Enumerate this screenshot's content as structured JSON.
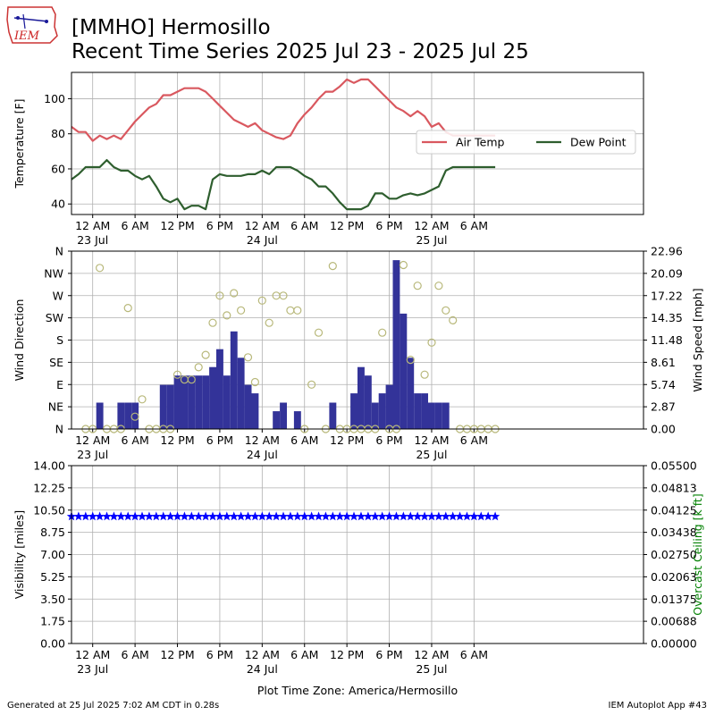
{
  "header": {
    "title_line1": "[MMHO] Hermosillo",
    "title_line2": "Recent Time Series 2025 Jul 23 - 2025 Jul 25",
    "logo_text": "IEM"
  },
  "footer": {
    "left": "Generated at 25 Jul 2025 7:02 AM CDT in 0.28s",
    "right": "IEM Autoplot App #43"
  },
  "colors": {
    "air_temp": "#d9585f",
    "dew_point": "#2e5e2e",
    "wind_bar": "#333399",
    "wind_dir": "#b8b87a",
    "visibility": "#0000ff",
    "ceiling_label": "#008000",
    "grid": "#b0b0b0"
  },
  "chart_data": [
    {
      "type": "line",
      "ylabel": "Temperature [F]",
      "ylim": [
        34,
        115
      ],
      "yticks": [
        40,
        60,
        80,
        100
      ],
      "xlim": [
        -3,
        78
      ],
      "grid": true,
      "legend_position": "right",
      "x_tick_hours": [
        0,
        6,
        12,
        18,
        24,
        30,
        36,
        42,
        48,
        54
      ],
      "x_tick_labels": [
        "12 AM",
        "6 AM",
        "12 PM",
        "6 PM",
        "12 AM",
        "6 AM",
        "12 PM",
        "6 PM",
        "12 AM",
        "6 AM"
      ],
      "x_date_labels": [
        {
          "hour": 0,
          "label": "23 Jul"
        },
        {
          "hour": 24,
          "label": "24 Jul"
        },
        {
          "hour": 48,
          "label": "25 Jul"
        }
      ],
      "series": [
        {
          "name": "Air Temp",
          "x": [
            -3,
            -2,
            -1,
            0,
            1,
            2,
            3,
            4,
            5,
            6,
            7,
            8,
            9,
            10,
            11,
            12,
            13,
            14,
            15,
            16,
            17,
            18,
            19,
            20,
            21,
            22,
            23,
            24,
            25,
            26,
            27,
            28,
            29,
            30,
            31,
            32,
            33,
            34,
            35,
            36,
            37,
            38,
            39,
            40,
            41,
            42,
            43,
            44,
            45,
            46,
            47,
            48,
            49,
            50,
            51,
            52,
            53,
            54,
            55,
            56,
            57
          ],
          "values": [
            84,
            81,
            81,
            76,
            79,
            77,
            79,
            77,
            82,
            87,
            91,
            95,
            97,
            102,
            102,
            104,
            106,
            106,
            106,
            104,
            100,
            96,
            92,
            88,
            86,
            84,
            86,
            82,
            80,
            78,
            77,
            79,
            86,
            91,
            95,
            100,
            104,
            104,
            107,
            111,
            109,
            111,
            111,
            107,
            103,
            99,
            95,
            93,
            90,
            93,
            90,
            84,
            86,
            81,
            79,
            79,
            79,
            79,
            79,
            79,
            79
          ]
        },
        {
          "name": "Dew Point",
          "x": [
            -3,
            -2,
            -1,
            0,
            1,
            2,
            3,
            4,
            5,
            6,
            7,
            8,
            9,
            10,
            11,
            12,
            13,
            14,
            15,
            16,
            17,
            18,
            19,
            20,
            21,
            22,
            23,
            24,
            25,
            26,
            27,
            28,
            29,
            30,
            31,
            32,
            33,
            34,
            35,
            36,
            37,
            38,
            39,
            40,
            41,
            42,
            43,
            44,
            45,
            46,
            47,
            48,
            49,
            50,
            51,
            52,
            53,
            54,
            55,
            56,
            57
          ],
          "values": [
            54,
            57,
            61,
            61,
            61,
            65,
            61,
            59,
            59,
            56,
            54,
            56,
            50,
            43,
            41,
            43,
            37,
            39,
            39,
            37,
            54,
            57,
            56,
            56,
            56,
            57,
            57,
            59,
            57,
            61,
            61,
            61,
            59,
            56,
            54,
            50,
            50,
            46,
            41,
            37,
            37,
            37,
            39,
            46,
            46,
            43,
            43,
            45,
            46,
            45,
            46,
            48,
            50,
            59,
            61,
            61,
            61,
            61,
            61,
            61,
            61
          ]
        }
      ]
    },
    {
      "type": "bar",
      "ylabel": "Wind Direction",
      "y2label": "Wind Speed [mph]",
      "ylim_direction": [
        0,
        360
      ],
      "yticks_direction": [
        0,
        45,
        90,
        135,
        180,
        225,
        270,
        315,
        360
      ],
      "ytick_labels_direction": [
        "N",
        "NE",
        "E",
        "SE",
        "S",
        "SW",
        "W",
        "NW",
        "N"
      ],
      "ylim_speed": [
        0,
        22.96
      ],
      "yticks_speed_labels": [
        "0.00",
        "2.87",
        "5.74",
        "8.61",
        "11.48",
        "14.35",
        "17.22",
        "20.09",
        "22.96"
      ],
      "xlim": [
        -3,
        78
      ],
      "grid": true,
      "x_tick_hours": [
        0,
        6,
        12,
        18,
        24,
        30,
        36,
        42,
        48,
        54
      ],
      "x_tick_labels": [
        "12 AM",
        "6 AM",
        "12 PM",
        "6 PM",
        "12 AM",
        "6 AM",
        "12 PM",
        "6 PM",
        "12 AM",
        "6 AM"
      ],
      "x_date_labels": [
        {
          "hour": 0,
          "label": "23 Jul"
        },
        {
          "hour": 24,
          "label": "24 Jul"
        },
        {
          "hour": 48,
          "label": "25 Jul"
        }
      ],
      "speed_series": {
        "name": "Wind Speed",
        "x": [
          -1,
          0,
          1,
          2,
          3,
          4,
          5,
          6,
          7,
          8,
          9,
          10,
          11,
          12,
          13,
          14,
          15,
          16,
          17,
          18,
          19,
          20,
          21,
          22,
          23,
          24,
          25,
          26,
          27,
          28,
          29,
          30,
          31,
          32,
          33,
          34,
          35,
          36,
          37,
          38,
          39,
          40,
          41,
          42,
          43,
          44,
          45,
          46,
          47,
          48,
          49,
          50,
          51,
          52,
          53,
          54,
          55,
          56,
          57
        ],
        "values": [
          0,
          0,
          3.4,
          0,
          0,
          3.4,
          3.4,
          3.4,
          0,
          0,
          0,
          5.7,
          5.7,
          6.9,
          6.9,
          6.9,
          6.9,
          6.9,
          8.0,
          10.3,
          6.9,
          12.6,
          9.2,
          5.7,
          4.6,
          0,
          0,
          2.3,
          3.4,
          0,
          2.3,
          0,
          0,
          0,
          0,
          3.4,
          0,
          0,
          4.6,
          8.0,
          6.9,
          3.4,
          4.6,
          5.7,
          21.8,
          14.9,
          9.2,
          4.6,
          4.6,
          3.4,
          3.4,
          3.4,
          0,
          0,
          0,
          0,
          0,
          0,
          0
        ]
      },
      "direction_series": {
        "name": "Wind Direction",
        "x": [
          -1,
          0,
          1,
          2,
          3,
          4,
          5,
          6,
          7,
          8,
          9,
          10,
          11,
          12,
          13,
          14,
          15,
          16,
          17,
          18,
          19,
          20,
          21,
          22,
          23,
          24,
          25,
          26,
          27,
          28,
          29,
          30,
          31,
          32,
          33,
          34,
          35,
          36,
          37,
          38,
          39,
          40,
          41,
          42,
          43,
          44,
          45,
          46,
          47,
          48,
          49,
          50,
          51,
          52,
          53,
          54,
          55,
          56,
          57
        ],
        "values": [
          0,
          0,
          326,
          0,
          0,
          0,
          245,
          25,
          60,
          0,
          0,
          0,
          0,
          110,
          100,
          100,
          125,
          150,
          215,
          270,
          230,
          275,
          240,
          145,
          95,
          260,
          215,
          270,
          270,
          240,
          240,
          0,
          90,
          195,
          0,
          330,
          0,
          0,
          0,
          0,
          0,
          0,
          195,
          0,
          0,
          332,
          140,
          290,
          110,
          175,
          290,
          240,
          220,
          0,
          0,
          0,
          0,
          0,
          0
        ]
      }
    },
    {
      "type": "scatter",
      "ylabel": "Visibility [miles]",
      "y2label": "Overcast Ceiling [k ft]",
      "xlabel": "Plot Time Zone: America/Hermosillo",
      "ylim": [
        0,
        14
      ],
      "yticks_labels": [
        "0.00",
        "1.75",
        "3.50",
        "5.25",
        "7.00",
        "8.75",
        "10.50",
        "12.25",
        "14.00"
      ],
      "y2lim": [
        0,
        0.055
      ],
      "y2ticks_labels": [
        "0.00000",
        "0.00688",
        "0.01375",
        "0.02063",
        "0.02750",
        "0.03438",
        "0.04125",
        "0.04813",
        "0.05500"
      ],
      "xlim": [
        -3,
        78
      ],
      "grid": true,
      "x_tick_hours": [
        0,
        6,
        12,
        18,
        24,
        30,
        36,
        42,
        48,
        54
      ],
      "x_tick_labels": [
        "12 AM",
        "6 AM",
        "12 PM",
        "6 PM",
        "12 AM",
        "6 AM",
        "12 PM",
        "6 PM",
        "12 AM",
        "6 AM"
      ],
      "x_date_labels": [
        {
          "hour": 0,
          "label": "23 Jul"
        },
        {
          "hour": 24,
          "label": "24 Jul"
        },
        {
          "hour": 48,
          "label": "25 Jul"
        }
      ],
      "series": [
        {
          "name": "Visibility",
          "marker": "star",
          "x_start": -3,
          "x_end": 57,
          "x_step": 1,
          "value": 10
        }
      ]
    }
  ]
}
